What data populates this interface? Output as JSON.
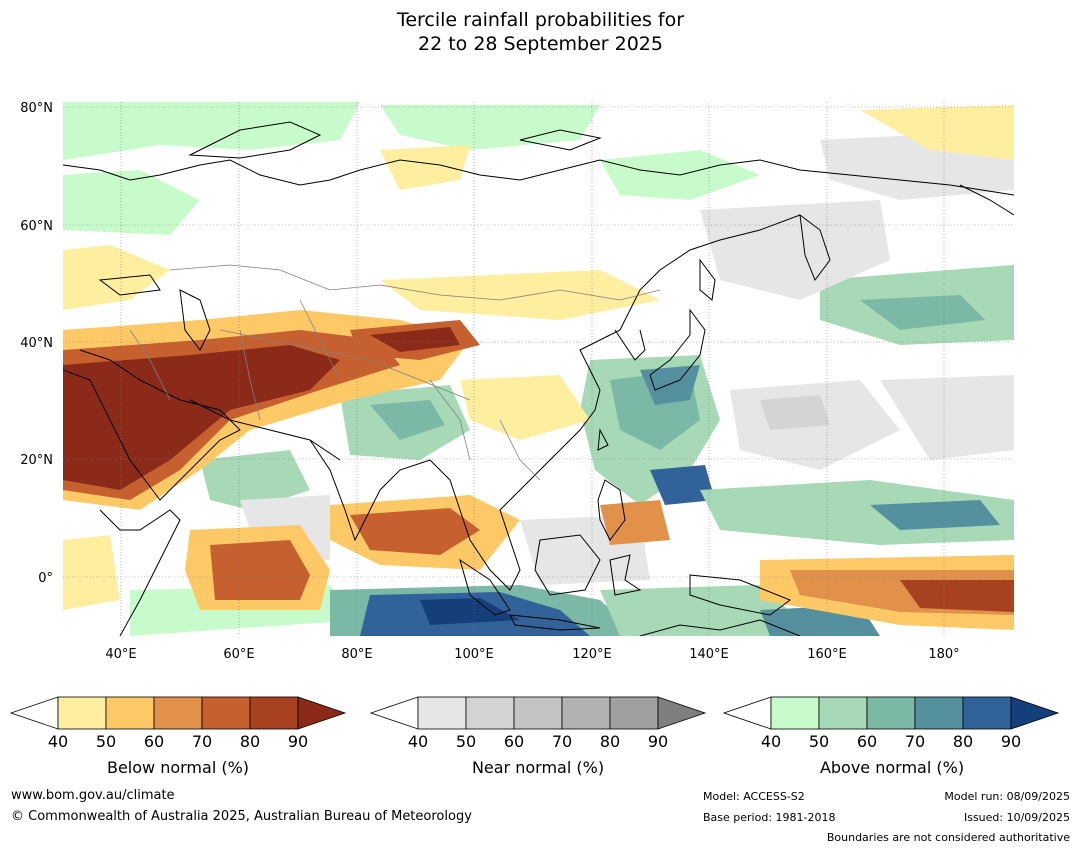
{
  "title": {
    "line1": "Tercile rainfall probabilities for",
    "line2": "22 to 28 September 2025"
  },
  "map": {
    "lat_labels": [
      "80°N",
      "60°N",
      "40°N",
      "20°N",
      "0°"
    ],
    "lon_labels": [
      "40°E",
      "60°E",
      "80°E",
      "100°E",
      "120°E",
      "140°E",
      "160°E",
      "180°"
    ],
    "extent": {
      "lon_min": 30,
      "lon_max": 192,
      "lat_min": -10,
      "lat_max": 81
    },
    "colors": {
      "coastline": "#000000",
      "borders": "#808080",
      "gridlines": "#808080"
    }
  },
  "legends": [
    {
      "title": "Below normal (%)",
      "ticks": [
        "40",
        "50",
        "60",
        "70",
        "80",
        "90"
      ],
      "colors": [
        "#ffffff",
        "#feeea0",
        "#fdc966",
        "#e1914a",
        "#c6602e",
        "#a8411f",
        "#8b2a18"
      ]
    },
    {
      "title": "Near normal (%)",
      "ticks": [
        "40",
        "50",
        "60",
        "70",
        "80",
        "90"
      ],
      "colors": [
        "#ffffff",
        "#e6e6e6",
        "#d4d4d4",
        "#c4c4c4",
        "#b2b2b2",
        "#a0a0a0",
        "#7f7f7f"
      ]
    },
    {
      "title": "Above normal (%)",
      "ticks": [
        "40",
        "50",
        "60",
        "70",
        "80",
        "90"
      ],
      "colors": [
        "#ffffff",
        "#c8fbcb",
        "#a7d9b7",
        "#7cb8a6",
        "#55909f",
        "#31639a",
        "#143f7b"
      ]
    }
  ],
  "footer": {
    "website": "www.bom.gov.au/climate",
    "copyright": "© Commonwealth of Australia 2025, Australian Bureau of Meteorology",
    "model": "Model: ACCESS-S2",
    "base_period": "Base period: 1981-2018",
    "model_run": "Model run: 08/09/2025",
    "issued": "Issued: 10/09/2025",
    "disclaimer": "Boundaries are not considered authoritative"
  }
}
